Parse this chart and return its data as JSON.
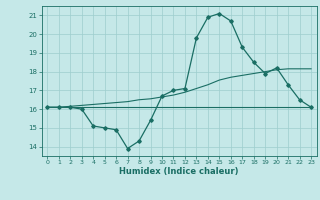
{
  "xlabel": "Humidex (Indice chaleur)",
  "bg_color": "#c5e8e8",
  "grid_color": "#9ecece",
  "line_color": "#1a6e64",
  "xlim": [
    -0.5,
    23.5
  ],
  "ylim": [
    13.5,
    21.5
  ],
  "xticks": [
    0,
    1,
    2,
    3,
    4,
    5,
    6,
    7,
    8,
    9,
    10,
    11,
    12,
    13,
    14,
    15,
    16,
    17,
    18,
    19,
    20,
    21,
    22,
    23
  ],
  "yticks": [
    14,
    15,
    16,
    17,
    18,
    19,
    20,
    21
  ],
  "curve1_x": [
    0,
    1,
    2,
    3,
    4,
    5,
    6,
    7,
    8,
    9,
    10,
    11,
    12,
    13,
    14,
    15,
    16,
    17,
    18,
    19,
    20,
    21,
    22,
    23
  ],
  "curve1_y": [
    16.1,
    16.1,
    16.1,
    16.0,
    15.1,
    15.0,
    14.9,
    13.9,
    14.3,
    15.4,
    16.7,
    17.0,
    17.1,
    19.8,
    20.9,
    21.1,
    20.7,
    19.3,
    18.5,
    17.9,
    18.2,
    17.3,
    16.5,
    16.1
  ],
  "curve2_x": [
    0,
    1,
    2,
    3,
    4,
    5,
    6,
    7,
    8,
    9,
    10,
    11,
    12,
    13,
    14,
    15,
    16,
    17,
    18,
    19,
    20,
    21,
    22,
    23
  ],
  "curve2_y": [
    16.1,
    16.1,
    16.1,
    16.1,
    16.1,
    16.1,
    16.1,
    16.1,
    16.1,
    16.1,
    16.1,
    16.1,
    16.1,
    16.1,
    16.1,
    16.1,
    16.1,
    16.1,
    16.1,
    16.1,
    16.1,
    16.1,
    16.1,
    16.1
  ],
  "curve3_x": [
    0,
    1,
    2,
    3,
    4,
    5,
    6,
    7,
    8,
    9,
    10,
    11,
    12,
    13,
    14,
    15,
    16,
    17,
    18,
    19,
    20,
    21,
    22,
    23
  ],
  "curve3_y": [
    16.1,
    16.1,
    16.15,
    16.2,
    16.25,
    16.3,
    16.35,
    16.4,
    16.5,
    16.55,
    16.65,
    16.75,
    16.9,
    17.1,
    17.3,
    17.55,
    17.7,
    17.8,
    17.9,
    18.0,
    18.1,
    18.15,
    18.15,
    18.15
  ]
}
